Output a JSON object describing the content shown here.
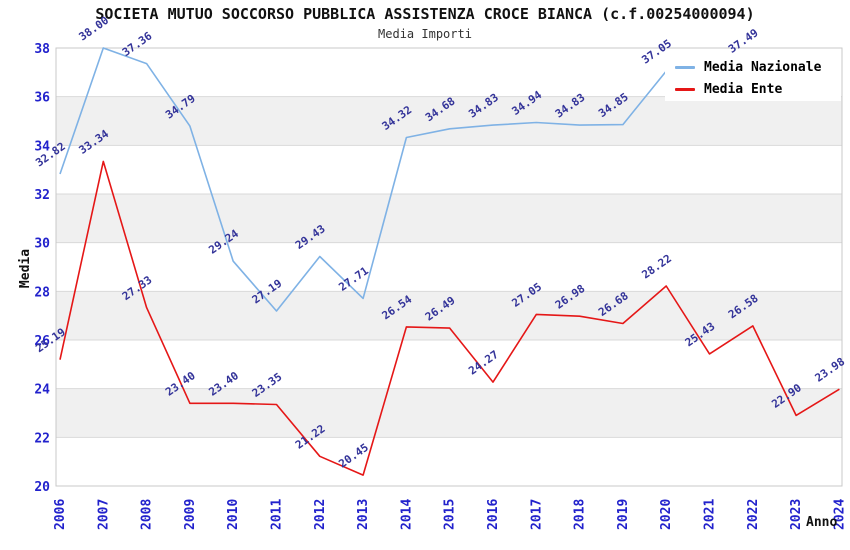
{
  "title": "SOCIETA MUTUO SOCCORSO PUBBLICA ASSISTENZA CROCE BIANCA (c.f.00254000094)",
  "subtitle": "Media Importi",
  "legend": {
    "items": [
      {
        "label": "Media Nazionale",
        "color": "#7FB2E5"
      },
      {
        "label": "Media Ente",
        "color": "#E51717"
      }
    ]
  },
  "axes": {
    "x_title": "Anno",
    "y_title": "Media",
    "y_ticks": [
      "20",
      "22",
      "24",
      "26",
      "28",
      "30",
      "32",
      "34",
      "36",
      "38"
    ],
    "x_ticks": [
      "2006",
      "2007",
      "2008",
      "2009",
      "2010",
      "2011",
      "2012",
      "2013",
      "2014",
      "2015",
      "2016",
      "2017",
      "2018",
      "2019",
      "2020",
      "2021",
      "2022",
      "2023",
      "2024"
    ]
  },
  "chart_data": {
    "type": "line",
    "title": "SOCIETA MUTUO SOCCORSO PUBBLICA ASSISTENZA CROCE BIANCA (c.f.00254000094)",
    "subtitle": "Media Importi",
    "xlabel": "Anno",
    "ylabel": "Media",
    "x": [
      2006,
      2007,
      2008,
      2009,
      2010,
      2011,
      2012,
      2013,
      2014,
      2015,
      2016,
      2017,
      2018,
      2019,
      2020,
      2021,
      2022,
      2023,
      2024
    ],
    "ylim": [
      20,
      38
    ],
    "ytick_step": 2,
    "grid": true,
    "alternating_bands": true,
    "legend_position": "top-right",
    "point_labels_visible": true,
    "series": [
      {
        "name": "Media Nazionale",
        "color": "#7FB2E5",
        "values": [
          32.82,
          38.0,
          37.36,
          34.79,
          29.24,
          27.19,
          29.43,
          27.71,
          34.32,
          34.68,
          34.83,
          34.94,
          34.83,
          34.85,
          37.05,
          null,
          37.49,
          null,
          null
        ]
      },
      {
        "name": "Media Ente",
        "color": "#E51717",
        "values": [
          25.19,
          33.34,
          27.33,
          23.4,
          23.4,
          23.35,
          21.22,
          20.45,
          26.54,
          26.49,
          24.27,
          27.05,
          26.98,
          26.68,
          28.22,
          25.43,
          26.58,
          22.9,
          23.98
        ]
      }
    ]
  },
  "colors": {
    "tick_label": "#2222CC",
    "point_label": "#333399",
    "band_gray": "#F0F0F0",
    "gridline": "#D9D9D9",
    "plot_border": "#C9C9C9",
    "background": "#FFFFFF"
  }
}
